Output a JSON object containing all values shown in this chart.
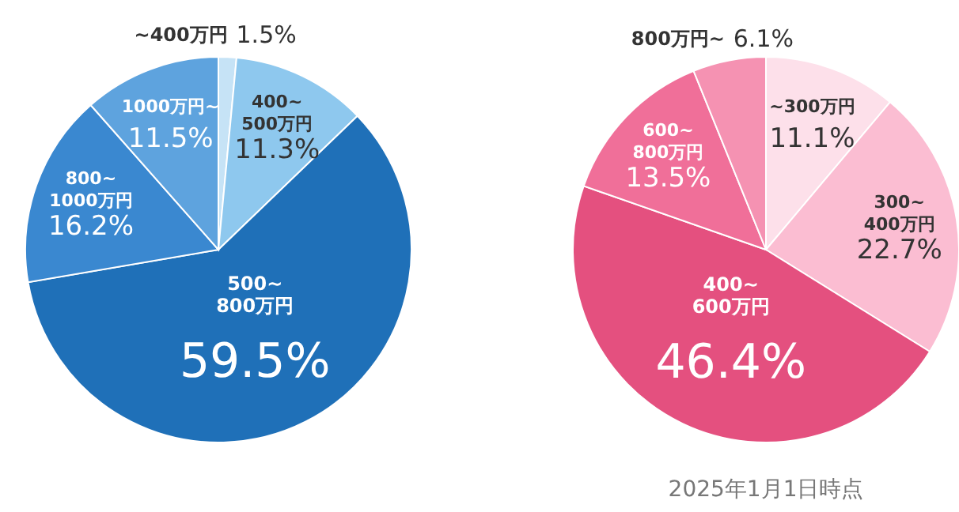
{
  "chart_data": [
    {
      "type": "pie",
      "categories": [
        "~400万円",
        "400~500万円",
        "500~800万円",
        "800~1000万円",
        "1000万円~"
      ],
      "values": [
        1.5,
        11.3,
        59.5,
        16.2,
        11.5
      ],
      "value_labels": [
        "1.5%",
        "11.3%",
        "59.5%",
        "16.2%",
        "11.5%"
      ],
      "colors": [
        "#c6e3f6",
        "#8ec8ee",
        "#1f70b8",
        "#3a88d0",
        "#5ea3de"
      ]
    },
    {
      "type": "pie",
      "categories": [
        "~300万円",
        "300~400万円",
        "400~600万円",
        "600~800万円",
        "800万円~"
      ],
      "values": [
        11.1,
        22.7,
        46.4,
        13.5,
        6.1
      ],
      "value_labels": [
        "11.1%",
        "22.7%",
        "46.4%",
        "13.5%",
        "6.1%"
      ],
      "colors": [
        "#fde0ea",
        "#fbbdd2",
        "#e4507f",
        "#f06f99",
        "#f592b2"
      ],
      "annotations": [
        "2025年1月1日時点"
      ]
    }
  ]
}
